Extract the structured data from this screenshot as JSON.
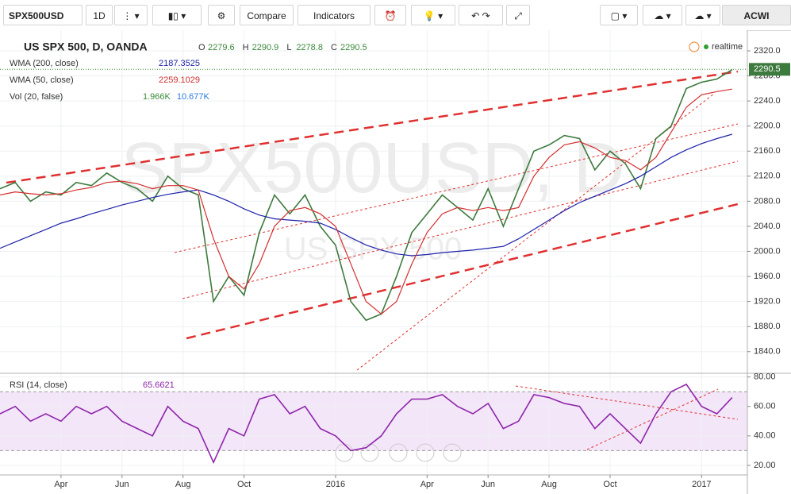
{
  "toolbar": {
    "symbol": "SPX500USD",
    "interval": "1D",
    "compare": "Compare",
    "indicators": "Indicators",
    "watchlist": "ACWI"
  },
  "watermark": {
    "main": "SPX500USD, D",
    "sub": "US SPX 500"
  },
  "legend": {
    "title": "US SPX 500, D, OANDA",
    "ohlc": [
      {
        "label": "O",
        "value": 2279.6
      },
      {
        "label": "H",
        "value": 2290.9
      },
      {
        "label": "L",
        "value": 2278.8
      },
      {
        "label": "C",
        "value": 2290.5
      }
    ],
    "status": "realtime",
    "studies": [
      {
        "name": "WMA (200, close)",
        "values": [
          2187.3525
        ]
      },
      {
        "name": "WMA (50, close)",
        "values": [
          2259.1029
        ]
      },
      {
        "name": "Vol (20, false)",
        "values": [
          "1.966K",
          "10.677K"
        ]
      }
    ],
    "rsi": {
      "name": "RSI (14, close)",
      "value": 65.6621
    }
  },
  "chart_data": [
    {
      "type": "line",
      "x": [
        -2,
        -1.5,
        -1,
        -0.5,
        0,
        0.5,
        1,
        1.5,
        2,
        2.5,
        3,
        3.5,
        4,
        4.5,
        5,
        5.5,
        6,
        6.5,
        7,
        7.5,
        8,
        8.5,
        9,
        9.5,
        10,
        10.5,
        11,
        11.5,
        12,
        12.5,
        13,
        13.5,
        14,
        14.5,
        15,
        15.5,
        16,
        16.5,
        17,
        17.5,
        18,
        18.5,
        19,
        19.5,
        20,
        20.5,
        21,
        21.5,
        22
      ],
      "series": [
        {
          "color": "#3d7a3d",
          "values": [
            2100,
            2110,
            2080,
            2095,
            2090,
            2110,
            2105,
            2125,
            2110,
            2100,
            2080,
            2120,
            2100,
            2090,
            1920,
            1960,
            1930,
            2030,
            2090,
            2060,
            2090,
            2040,
            2010,
            1920,
            1890,
            1900,
            1960,
            2030,
            2060,
            2090,
            2070,
            2050,
            2100,
            2040,
            2100,
            2160,
            2170,
            2185,
            2180,
            2130,
            2160,
            2140,
            2100,
            2180,
            2200,
            2260,
            2270,
            2275,
            2290
          ]
        },
        {
          "name": "WMA (200, close)",
          "color": "#1e22aa",
          "values": [
            2005,
            2015,
            2025,
            2035,
            2045,
            2052,
            2060,
            2067,
            2074,
            2080,
            2086,
            2091,
            2095,
            2098,
            2090,
            2080,
            2068,
            2058,
            2052,
            2050,
            2048,
            2045,
            2035,
            2022,
            2010,
            2002,
            1996,
            1993,
            1995,
            1998,
            2000,
            2002,
            2005,
            2008,
            2020,
            2035,
            2050,
            2065,
            2078,
            2088,
            2098,
            2108,
            2120,
            2135,
            2150,
            2162,
            2172,
            2180,
            2187
          ]
        },
        {
          "name": "WMA (50, close)",
          "color": "#d32f2f",
          "values": [
            2090,
            2095,
            2092,
            2090,
            2092,
            2098,
            2102,
            2110,
            2112,
            2108,
            2100,
            2105,
            2105,
            2098,
            2020,
            1960,
            1940,
            1980,
            2040,
            2065,
            2070,
            2060,
            2040,
            1980,
            1920,
            1900,
            1920,
            1980,
            2030,
            2060,
            2070,
            2065,
            2070,
            2065,
            2070,
            2120,
            2150,
            2170,
            2175,
            2165,
            2150,
            2145,
            2130,
            2150,
            2190,
            2230,
            2250,
            2255,
            2259
          ]
        }
      ],
      "xlim": [
        -2,
        22.5
      ],
      "xticks": [
        {
          "value": 0,
          "label": "Apr"
        },
        {
          "value": 2,
          "label": "Jun"
        },
        {
          "value": 4,
          "label": "Aug"
        },
        {
          "value": 6,
          "label": "Oct"
        },
        {
          "value": 9,
          "label": "2016"
        },
        {
          "value": 12,
          "label": "Apr"
        },
        {
          "value": 14,
          "label": "Jun"
        },
        {
          "value": 16,
          "label": "Aug"
        },
        {
          "value": 18,
          "label": "Oct"
        },
        {
          "value": 21,
          "label": "2017"
        }
      ],
      "ylim": [
        1808,
        2353
      ],
      "yticks": [
        {
          "value": 2320,
          "label": "2320.0"
        },
        {
          "value": 2280,
          "label": "2280.0"
        },
        {
          "value": 2240,
          "label": "2240.0"
        },
        {
          "value": 2200,
          "label": "2200.0"
        },
        {
          "value": 2160,
          "label": "2160.0"
        },
        {
          "value": 2120,
          "label": "2120.0"
        },
        {
          "value": 2080,
          "label": "2080.0"
        },
        {
          "value": 2040,
          "label": "2040.0"
        },
        {
          "value": 2000,
          "label": "2000.0"
        },
        {
          "value": 1960,
          "label": "1960.0"
        },
        {
          "value": 1920,
          "label": "1920.0"
        },
        {
          "value": 1880,
          "label": "1880.0"
        },
        {
          "value": 1840,
          "label": "1840.0"
        }
      ],
      "grid": true
    },
    {
      "type": "line",
      "x": [
        -2,
        -1.5,
        -1,
        -0.5,
        0,
        0.5,
        1,
        1.5,
        2,
        2.5,
        3,
        3.5,
        4,
        4.5,
        5,
        5.5,
        6,
        6.5,
        7,
        7.5,
        8,
        8.5,
        9,
        9.5,
        10,
        10.5,
        11,
        11.5,
        12,
        12.5,
        13,
        13.5,
        14,
        14.5,
        15,
        15.5,
        16,
        16.5,
        17,
        17.5,
        18,
        18.5,
        19,
        19.5,
        20,
        20.5,
        21,
        21.5,
        22
      ],
      "series": [
        {
          "name": "RSI (14, close)",
          "color": "#8e24aa",
          "values": [
            55,
            60,
            50,
            55,
            50,
            60,
            55,
            60,
            50,
            45,
            40,
            60,
            50,
            45,
            22,
            45,
            40,
            65,
            68,
            55,
            60,
            45,
            40,
            30,
            32,
            40,
            55,
            65,
            65,
            68,
            60,
            55,
            62,
            45,
            50,
            68,
            66,
            62,
            60,
            45,
            55,
            45,
            35,
            55,
            70,
            75,
            60,
            55,
            66
          ]
        }
      ],
      "xlim": [
        -2,
        22.5
      ],
      "ylim": [
        13.5,
        82.5
      ],
      "yticks": [
        {
          "value": 80,
          "label": "80.00"
        },
        {
          "value": 60,
          "label": "60.00"
        },
        {
          "value": 40,
          "label": "40.00"
        },
        {
          "value": 20,
          "label": "20.00"
        }
      ],
      "bands": [
        30,
        70
      ],
      "grid": true
    }
  ]
}
